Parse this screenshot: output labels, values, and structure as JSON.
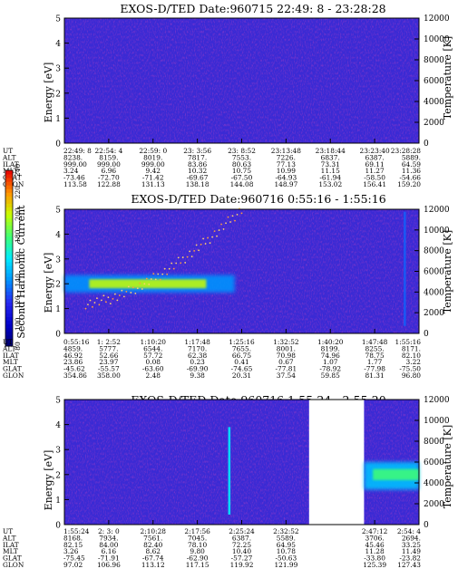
{
  "colorbar": {
    "label": "Second Harmonic Current",
    "ticks": [
      "80",
      "100",
      "120",
      "140",
      "160",
      "180",
      "200",
      "220",
      "240"
    ]
  },
  "ephem_labels": [
    "UT",
    "ALT",
    "ILAT",
    "MLT",
    "GLAT",
    "GLON"
  ],
  "chart_data": [
    {
      "type": "heatmap",
      "title": "EXOS-D/TED   Date:960715  22:49: 8 - 23:28:28",
      "ylabel": "Energy [eV]",
      "y2label": "Temperature [K]",
      "ylim": [
        0,
        5
      ],
      "y2lim": [
        0,
        12000
      ],
      "yticks": [
        "0",
        "1",
        "2",
        "3",
        "4",
        "5"
      ],
      "y2ticks": [
        "0",
        "2000",
        "4000",
        "6000",
        "8000",
        "10000",
        "12000"
      ],
      "columns": [
        {
          "UT": "22:49: 8",
          "ALT": "8238.",
          "ILAT": "999.00",
          "MLT": "3.24",
          "GLAT": "-73.46",
          "GLON": "113.58"
        },
        {
          "UT": "22:54: 4",
          "ALT": "8159.",
          "ILAT": "999.00",
          "MLT": "6.96",
          "GLAT": "-72.70",
          "GLON": "122.88"
        },
        {
          "UT": "22:59: 0",
          "ALT": "8019.",
          "ILAT": "999.00",
          "MLT": "9.42",
          "GLAT": "-71.42",
          "GLON": "131.13"
        },
        {
          "UT": "23: 3:56",
          "ALT": "7817.",
          "ILAT": "83.86",
          "MLT": "10.32",
          "GLAT": "-69.67",
          "GLON": "138.18"
        },
        {
          "UT": "23: 8:52",
          "ALT": "7553.",
          "ILAT": "80.63",
          "MLT": "10.75",
          "GLAT": "-67.50",
          "GLON": "144.08"
        },
        {
          "UT": "23:13:48",
          "ALT": "7226.",
          "ILAT": "77.13",
          "MLT": "10.99",
          "GLAT": "-64.93",
          "GLON": "148.97"
        },
        {
          "UT": "23:18:44",
          "ALT": "6837.",
          "ILAT": "73.31",
          "MLT": "11.15",
          "GLAT": "-61.94",
          "GLON": "153.02"
        },
        {
          "UT": "23:23:40",
          "ALT": "6387.",
          "ILAT": "69.11",
          "MLT": "11.27",
          "GLAT": "-58.50",
          "GLON": "156.41"
        },
        {
          "UT": "23:28:28",
          "ALT": "5889.",
          "ILAT": "64.59",
          "MLT": "11.36",
          "GLAT": "-54.66",
          "GLON": "159.20"
        }
      ],
      "features": []
    },
    {
      "type": "heatmap",
      "title": "EXOS-D/TED   Date:960716   0:55:16 - 1:55:16",
      "ylabel": "Energy [eV]",
      "y2label": "Temperature [K]",
      "ylim": [
        0,
        5
      ],
      "y2lim": [
        0,
        12000
      ],
      "yticks": [
        "0",
        "1",
        "2",
        "3",
        "4",
        "5"
      ],
      "y2ticks": [
        "0",
        "2000",
        "4000",
        "6000",
        "8000",
        "10000",
        "12000"
      ],
      "columns": [
        {
          "UT": "0:55:16",
          "ALT": "4859.",
          "ILAT": "46.92",
          "MLT": "23.86",
          "GLAT": "-45.62",
          "GLON": "354.86"
        },
        {
          "UT": "1: 2:52",
          "ALT": "5777.",
          "ILAT": "52.66",
          "MLT": "23.97",
          "GLAT": "-55.57",
          "GLON": "358.00"
        },
        {
          "UT": "1:10:20",
          "ALT": "6544.",
          "ILAT": "57.72",
          "MLT": "0.08",
          "GLAT": "-63.60",
          "GLON": "2.48"
        },
        {
          "UT": "1:17:48",
          "ALT": "7170.",
          "ILAT": "62.38",
          "MLT": "0.23",
          "GLAT": "-69.90",
          "GLON": "9.38"
        },
        {
          "UT": "1:25:16",
          "ALT": "7655.",
          "ILAT": "66.75",
          "MLT": "0.41",
          "GLAT": "-74.65",
          "GLON": "20.31"
        },
        {
          "UT": "1:32:52",
          "ALT": "8001.",
          "ILAT": "70.98",
          "MLT": "0.67",
          "GLAT": "-77.81",
          "GLON": "37.54"
        },
        {
          "UT": "1:40:20",
          "ALT": "8199.",
          "ILAT": "74.96",
          "MLT": "1.07",
          "GLAT": "-78.92",
          "GLON": "59.85"
        },
        {
          "UT": "1:47:48",
          "ALT": "8255.",
          "ILAT": "78.75",
          "MLT": "1.77",
          "GLAT": "-77.98",
          "GLON": "81.31"
        },
        {
          "UT": "1:55:16",
          "ALT": "8171.",
          "ILAT": "82.10",
          "MLT": "3.22",
          "GLAT": "-75.50",
          "GLON": "96.80"
        }
      ],
      "features": [
        {
          "kind": "band",
          "t": [
            0.0,
            0.48
          ],
          "center_eV": 2.0,
          "half_width_eV": 0.35,
          "level": 140
        },
        {
          "kind": "band",
          "t": [
            0.07,
            0.4
          ],
          "center_eV": 2.0,
          "half_width_eV": 0.18,
          "level": 200
        },
        {
          "kind": "spike",
          "t": 0.96,
          "e": [
            0.3,
            4.9
          ],
          "level": 130
        },
        {
          "kind": "dots",
          "t": [
            0.06,
            0.5
          ],
          "e": [
            1.2,
            5.0
          ]
        }
      ]
    },
    {
      "type": "heatmap",
      "title": "EXOS-D/TED   Date:960716   1:55:24 - 2:55:20",
      "ylabel": "Energy [eV]",
      "y2label": "Temperature [K]",
      "ylim": [
        0,
        5
      ],
      "y2lim": [
        0,
        12000
      ],
      "yticks": [
        "0",
        "1",
        "2",
        "3",
        "4",
        "5"
      ],
      "y2ticks": [
        "0",
        "2000",
        "4000",
        "6000",
        "8000",
        "10000",
        "12000"
      ],
      "columns": [
        {
          "UT": "1:55:24",
          "ALT": "8168.",
          "ILAT": "82.15",
          "MLT": "3.26",
          "GLAT": "-75.45",
          "GLON": "97.02"
        },
        {
          "UT": "2: 3: 0",
          "ALT": "7934.",
          "ILAT": "84.00",
          "MLT": "6.16",
          "GLAT": "-71.91",
          "GLON": "106.96"
        },
        {
          "UT": "2:10:28",
          "ALT": "7561.",
          "ILAT": "82.40",
          "MLT": "8.62",
          "GLAT": "-67.74",
          "GLON": "113.12"
        },
        {
          "UT": "2:17:56",
          "ALT": "7045.",
          "ILAT": "78.10",
          "MLT": "9.80",
          "GLAT": "-62.90",
          "GLON": "117.15"
        },
        {
          "UT": "2:25:24",
          "ALT": "6387.",
          "ILAT": "72.25",
          "MLT": "10.40",
          "GLAT": "-57.27",
          "GLON": "119.92"
        },
        {
          "UT": "2:32:52",
          "ALT": "5589.",
          "ILAT": "64.95",
          "MLT": "10.78",
          "GLAT": "-50.63",
          "GLON": "121.99"
        },
        {
          "UT": "",
          "ALT": "",
          "ILAT": "",
          "MLT": "",
          "GLAT": "",
          "GLON": ""
        },
        {
          "UT": "2:47:12",
          "ALT": "3706.",
          "ILAT": "45.46",
          "MLT": "11.28",
          "GLAT": "-33.80",
          "GLON": "125.39"
        },
        {
          "UT": "2:54: 4",
          "ALT": "2694.",
          "ILAT": "33.25",
          "MLT": "11.49",
          "GLAT": "-23.82",
          "GLON": "127.43"
        }
      ],
      "features": [
        {
          "kind": "spike",
          "t": 0.465,
          "e": [
            0.4,
            3.9
          ],
          "level": 160
        },
        {
          "kind": "gap",
          "t": [
            0.69,
            0.845
          ]
        },
        {
          "kind": "band",
          "t": [
            0.845,
            1.0
          ],
          "center_eV": 1.95,
          "half_width_eV": 0.55,
          "level": 150
        },
        {
          "kind": "band",
          "t": [
            0.87,
            1.0
          ],
          "center_eV": 2.0,
          "half_width_eV": 0.22,
          "level": 180
        }
      ]
    }
  ]
}
